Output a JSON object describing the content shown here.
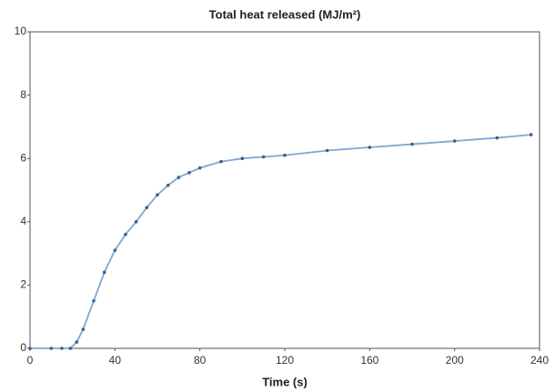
{
  "chart_data": {
    "type": "line",
    "title": "Total heat released (MJ/m²)",
    "x_label": "Time (s)",
    "x": [
      0,
      10,
      15,
      19,
      22,
      25,
      30,
      35,
      40,
      45,
      50,
      55,
      60,
      65,
      70,
      75,
      80,
      90,
      100,
      110,
      120,
      140,
      160,
      180,
      200,
      220,
      236
    ],
    "series": [
      {
        "name": "Total heat released",
        "color": "#7fa8d0",
        "marker_color": "#3a5f8f",
        "values": [
          0,
          0,
          0,
          0,
          0.2,
          0.6,
          1.5,
          2.4,
          3.1,
          3.6,
          4.0,
          4.45,
          4.85,
          5.15,
          5.4,
          5.55,
          5.7,
          5.9,
          6.0,
          6.05,
          6.1,
          6.25,
          6.35,
          6.45,
          6.55,
          6.65,
          6.75
        ]
      }
    ],
    "xlim": [
      0,
      240
    ],
    "xticks": [
      0,
      40,
      80,
      120,
      160,
      200,
      240
    ],
    "ylim": [
      0,
      10
    ],
    "yticks": [
      0,
      2,
      4,
      6,
      8,
      10
    ],
    "grid": false
  }
}
